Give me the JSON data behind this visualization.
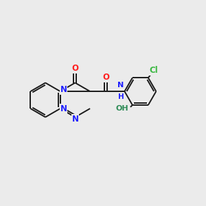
{
  "bg_color": "#ebebeb",
  "bond_color": "#1a1a1a",
  "N_color": "#2020ff",
  "O_color": "#ff2020",
  "Cl_color": "#3cb843",
  "OH_color": "#2e8b57",
  "bond_lw": 1.4,
  "font_size": 8.5,
  "figsize": [
    3.0,
    3.0
  ],
  "dpi": 100,
  "xlim": [
    0,
    10
  ],
  "ylim": [
    0,
    10
  ]
}
